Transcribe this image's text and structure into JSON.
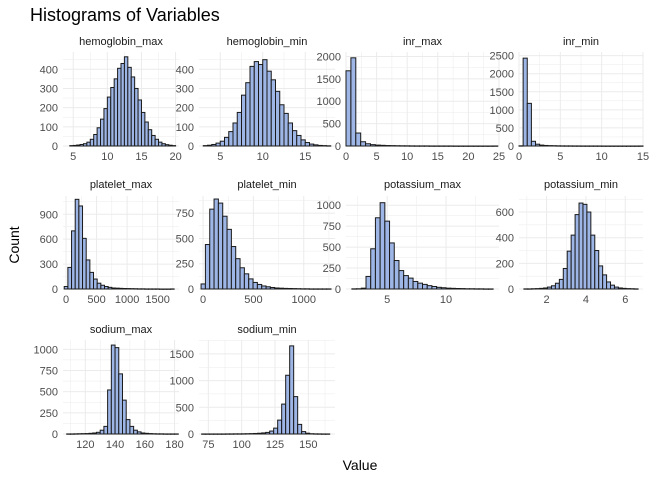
{
  "title": "Histograms of Variables",
  "xlabel": "Value",
  "ylabel": "Count",
  "colors": {
    "bar_fill": "#9EB6E6",
    "bar_stroke": "#1a1a1a",
    "grid": "#EBEBEB"
  },
  "chart_data": [
    {
      "type": "bar",
      "panel": "hemoglobin_max",
      "xlim": [
        3.5,
        20.5
      ],
      "ylim": [
        0,
        490
      ],
      "xticks": [
        5,
        10,
        15,
        20
      ],
      "yticks": [
        0,
        100,
        200,
        300,
        400
      ],
      "x": [
        4.75,
        5.25,
        5.75,
        6.25,
        6.75,
        7.25,
        7.75,
        8.25,
        8.75,
        9.25,
        9.75,
        10.25,
        10.75,
        11.25,
        11.75,
        12.25,
        12.75,
        13.25,
        13.75,
        14.25,
        14.75,
        15.25,
        15.75,
        16.25,
        16.75,
        17.25,
        17.75,
        18.25,
        18.75,
        19.25,
        19.75
      ],
      "values": [
        2,
        3,
        5,
        8,
        12,
        20,
        35,
        60,
        95,
        140,
        195,
        255,
        305,
        350,
        405,
        430,
        465,
        410,
        360,
        300,
        240,
        175,
        125,
        85,
        55,
        35,
        20,
        12,
        7,
        4,
        2
      ]
    },
    {
      "type": "bar",
      "panel": "hemoglobin_min",
      "xlim": [
        2.5,
        18.5
      ],
      "ylim": [
        0,
        490
      ],
      "xticks": [
        5,
        10,
        15
      ],
      "yticks": [
        0,
        100,
        200,
        300,
        400
      ],
      "x": [
        3.25,
        3.75,
        4.25,
        4.75,
        5.25,
        5.75,
        6.25,
        6.75,
        7.25,
        7.75,
        8.25,
        8.75,
        9.25,
        9.75,
        10.25,
        10.75,
        11.25,
        11.75,
        12.25,
        12.75,
        13.25,
        13.75,
        14.25,
        14.75,
        15.25,
        15.75,
        16.25,
        16.75,
        17.25,
        17.75
      ],
      "values": [
        2,
        4,
        8,
        15,
        25,
        45,
        75,
        120,
        175,
        265,
        330,
        415,
        440,
        425,
        450,
        390,
        345,
        285,
        215,
        170,
        120,
        80,
        55,
        32,
        18,
        10,
        6,
        3,
        2,
        1
      ]
    },
    {
      "type": "bar",
      "panel": "inr_max",
      "xlim": [
        0,
        25
      ],
      "ylim": [
        0,
        2100
      ],
      "xticks": [
        0,
        5,
        10,
        15,
        20,
        25
      ],
      "yticks": [
        0,
        500,
        1000,
        1500,
        2000
      ],
      "x": [
        0.4,
        1.2,
        2.0,
        2.8,
        3.6,
        4.4,
        5.2,
        6.0,
        6.8,
        7.6,
        8.4,
        9.2,
        10.0,
        10.8,
        11.6,
        12.4,
        13.2,
        14.0,
        14.8,
        15.6,
        16.4,
        17.2,
        18.0,
        18.8,
        19.6,
        20.4,
        21.2,
        22.0,
        22.8,
        23.6,
        24.4
      ],
      "values": [
        1680,
        1970,
        290,
        95,
        50,
        30,
        20,
        15,
        10,
        8,
        6,
        5,
        4,
        3,
        2,
        2,
        2,
        1,
        1,
        1,
        1,
        1,
        0,
        0,
        0,
        0,
        0,
        0,
        0,
        0,
        1
      ]
    },
    {
      "type": "bar",
      "panel": "inr_min",
      "xlim": [
        0,
        15
      ],
      "ylim": [
        0,
        2600
      ],
      "xticks": [
        0,
        5,
        10,
        15
      ],
      "yticks": [
        0,
        500,
        1000,
        1500,
        2000,
        2500
      ],
      "x": [
        0.25,
        0.75,
        1.25,
        1.75,
        2.25,
        2.75,
        3.25,
        3.75,
        4.25,
        4.75,
        5.25,
        5.75,
        6.25,
        6.75,
        7.25,
        7.75,
        8.25,
        8.75,
        9.25,
        9.75,
        10.25,
        10.75,
        11.25,
        11.75,
        12.25,
        12.75,
        13.25,
        13.75,
        14.25,
        14.75
      ],
      "values": [
        5,
        2430,
        1180,
        130,
        50,
        25,
        15,
        10,
        8,
        5,
        4,
        3,
        3,
        2,
        2,
        1,
        1,
        1,
        1,
        1,
        0,
        0,
        0,
        0,
        0,
        0,
        0,
        0,
        0,
        1
      ]
    },
    {
      "type": "bar",
      "panel": "platelet_max",
      "xlim": [
        -50,
        1850
      ],
      "ylim": [
        0,
        1120
      ],
      "xticks": [
        0,
        500,
        1000,
        1500
      ],
      "yticks": [
        0,
        300,
        600,
        900
      ],
      "x": [
        0,
        60,
        120,
        180,
        240,
        300,
        360,
        420,
        480,
        540,
        600,
        660,
        720,
        780,
        840,
        900,
        960,
        1020,
        1080,
        1140,
        1200,
        1260,
        1320,
        1380,
        1440,
        1500,
        1560,
        1620,
        1680,
        1740
      ],
      "values": [
        30,
        260,
        700,
        1080,
        1000,
        610,
        350,
        200,
        120,
        70,
        45,
        30,
        20,
        12,
        10,
        8,
        6,
        5,
        4,
        3,
        2,
        2,
        1,
        1,
        1,
        1,
        0,
        0,
        0,
        1
      ]
    },
    {
      "type": "bar",
      "panel": "platelet_min",
      "xlim": [
        -40,
        1310
      ],
      "ylim": [
        0,
        920
      ],
      "xticks": [
        0,
        500,
        1000
      ],
      "yticks": [
        0,
        250,
        500,
        750
      ],
      "x": [
        2,
        45,
        88,
        131,
        174,
        217,
        260,
        303,
        346,
        389,
        432,
        475,
        518,
        561,
        604,
        647,
        690,
        733,
        776,
        819,
        862,
        905,
        948,
        991,
        1034,
        1077,
        1120,
        1163,
        1206,
        1249
      ],
      "values": [
        50,
        440,
        790,
        890,
        850,
        720,
        590,
        420,
        300,
        210,
        150,
        100,
        65,
        45,
        30,
        22,
        15,
        10,
        8,
        6,
        5,
        4,
        3,
        2,
        2,
        1,
        1,
        1,
        1,
        1
      ]
    },
    {
      "type": "bar",
      "panel": "potassium_max",
      "xlim": [
        1.5,
        14.5
      ],
      "ylim": [
        0,
        1110
      ],
      "xticks": [
        5,
        10
      ],
      "yticks": [
        0,
        250,
        500,
        750,
        1000
      ],
      "x": [
        2.2,
        2.6,
        3.0,
        3.4,
        3.8,
        4.2,
        4.6,
        5.0,
        5.4,
        5.8,
        6.2,
        6.6,
        7.0,
        7.4,
        7.8,
        8.2,
        8.6,
        9.0,
        9.4,
        9.8,
        10.2,
        10.6,
        11.0,
        11.4,
        11.8,
        12.2,
        12.6,
        13.0,
        13.4,
        13.8
      ],
      "values": [
        2,
        3,
        10,
        150,
        480,
        850,
        1030,
        810,
        550,
        340,
        220,
        160,
        130,
        90,
        70,
        55,
        40,
        30,
        20,
        15,
        10,
        8,
        6,
        5,
        3,
        3,
        2,
        2,
        1,
        1
      ]
    },
    {
      "type": "bar",
      "panel": "potassium_min",
      "xlim": [
        0.6,
        6.9
      ],
      "ylim": [
        0,
        725
      ],
      "xticks": [
        2,
        4,
        6
      ],
      "yticks": [
        0,
        200,
        400,
        600
      ],
      "x": [
        0.95,
        1.15,
        1.35,
        1.55,
        1.75,
        1.95,
        2.15,
        2.35,
        2.55,
        2.75,
        2.95,
        3.15,
        3.35,
        3.55,
        3.75,
        3.95,
        4.15,
        4.35,
        4.55,
        4.75,
        4.95,
        5.15,
        5.35,
        5.55,
        5.75,
        5.95,
        6.15,
        6.35,
        6.55
      ],
      "values": [
        1,
        1,
        2,
        3,
        5,
        8,
        15,
        25,
        45,
        75,
        160,
        295,
        420,
        580,
        670,
        660,
        600,
        420,
        300,
        180,
        110,
        55,
        30,
        15,
        8,
        5,
        3,
        2,
        1
      ]
    },
    {
      "type": "bar",
      "panel": "sodium_max",
      "xlim": [
        105,
        183
      ],
      "ylim": [
        0,
        1110
      ],
      "xticks": [
        120,
        140,
        160,
        180
      ],
      "yticks": [
        0,
        250,
        500,
        750,
        1000
      ],
      "x": [
        108.75,
        111.25,
        113.75,
        116.25,
        118.75,
        121.25,
        123.75,
        126.25,
        128.75,
        131.25,
        133.75,
        136.25,
        138.75,
        141.25,
        143.75,
        146.25,
        148.75,
        151.25,
        153.75,
        156.25,
        158.75,
        161.25,
        163.75,
        166.25,
        168.75,
        171.25,
        173.75,
        176.25,
        178.75,
        181.25
      ],
      "values": [
        1,
        1,
        2,
        3,
        4,
        5,
        8,
        12,
        20,
        45,
        90,
        520,
        1050,
        1020,
        710,
        400,
        170,
        90,
        45,
        25,
        12,
        8,
        5,
        3,
        2,
        2,
        1,
        1,
        1,
        1
      ]
    },
    {
      "type": "bar",
      "panel": "sodium_min",
      "xlim": [
        68,
        170
      ],
      "ylim": [
        0,
        1760
      ],
      "xticks": [
        75,
        100,
        125,
        150
      ],
      "yticks": [
        0,
        500,
        1000,
        1500
      ],
      "x": [
        71.5,
        74.5,
        77.5,
        80.5,
        83.5,
        86.5,
        89.5,
        92.5,
        95.5,
        98.5,
        101.5,
        104.5,
        107.5,
        110.5,
        113.5,
        116.5,
        119.5,
        122.5,
        125.5,
        128.5,
        131.5,
        134.5,
        137.5,
        140.5,
        143.5,
        146.5,
        149.5,
        152.5,
        155.5,
        158.5,
        161.5,
        164.5
      ],
      "values": [
        1,
        1,
        1,
        1,
        1,
        1,
        2,
        2,
        3,
        3,
        4,
        5,
        7,
        10,
        14,
        20,
        30,
        55,
        110,
        260,
        560,
        1100,
        1650,
        700,
        180,
        45,
        15,
        5,
        3,
        2,
        1,
        1
      ]
    }
  ]
}
